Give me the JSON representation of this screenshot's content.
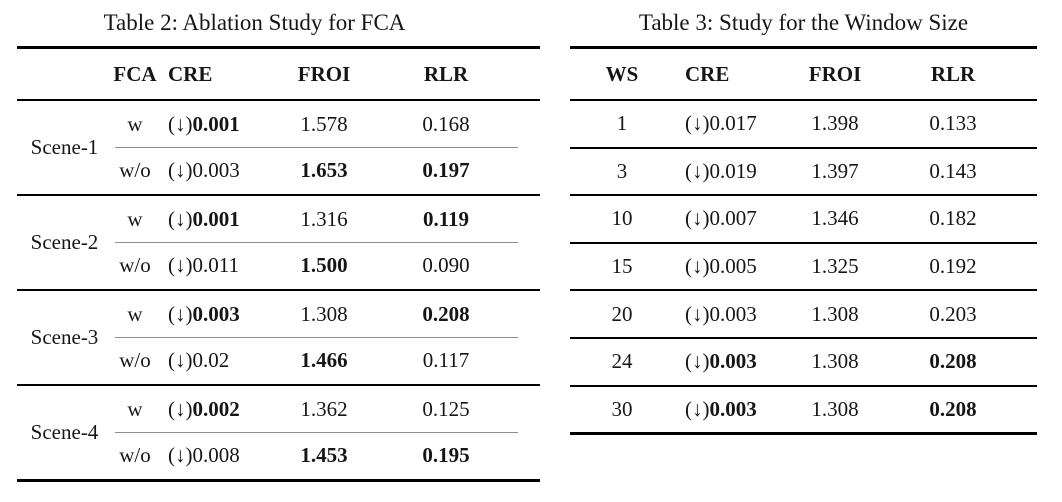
{
  "colors": {
    "background": "#ffffff",
    "text": "#161616",
    "rule": "#000000",
    "thin_divider": "#8f8f8f"
  },
  "common": {
    "cre_prefix": "(↓)"
  },
  "table2": {
    "title": "Table 2: Ablation Study for FCA",
    "columns": {
      "fca": "FCA",
      "cre": "CRE",
      "froi": "FROI",
      "rlr": "RLR"
    },
    "groups": [
      {
        "scene": "Scene-1",
        "rows": [
          {
            "fca": "w",
            "cre": "0.001",
            "cre_bold": true,
            "froi": "1.578",
            "froi_bold": false,
            "rlr": "0.168",
            "rlr_bold": false
          },
          {
            "fca": "w/o",
            "cre": "0.003",
            "cre_bold": false,
            "froi": "1.653",
            "froi_bold": true,
            "rlr": "0.197",
            "rlr_bold": true
          }
        ]
      },
      {
        "scene": "Scene-2",
        "rows": [
          {
            "fca": "w",
            "cre": "0.001",
            "cre_bold": true,
            "froi": "1.316",
            "froi_bold": false,
            "rlr": "0.119",
            "rlr_bold": true
          },
          {
            "fca": "w/o",
            "cre": "0.011",
            "cre_bold": false,
            "froi": "1.500",
            "froi_bold": true,
            "rlr": "0.090",
            "rlr_bold": false
          }
        ]
      },
      {
        "scene": "Scene-3",
        "rows": [
          {
            "fca": "w",
            "cre": "0.003",
            "cre_bold": true,
            "froi": "1.308",
            "froi_bold": false,
            "rlr": "0.208",
            "rlr_bold": true
          },
          {
            "fca": "w/o",
            "cre": "0.02",
            "cre_bold": false,
            "froi": "1.466",
            "froi_bold": true,
            "rlr": "0.117",
            "rlr_bold": false
          }
        ]
      },
      {
        "scene": "Scene-4",
        "rows": [
          {
            "fca": "w",
            "cre": "0.002",
            "cre_bold": true,
            "froi": "1.362",
            "froi_bold": false,
            "rlr": "0.125",
            "rlr_bold": false
          },
          {
            "fca": "w/o",
            "cre": "0.008",
            "cre_bold": false,
            "froi": "1.453",
            "froi_bold": true,
            "rlr": "0.195",
            "rlr_bold": true
          }
        ]
      }
    ]
  },
  "table3": {
    "title": "Table 3: Study for the Window Size",
    "columns": {
      "ws": "WS",
      "cre": "CRE",
      "froi": "FROI",
      "rlr": "RLR"
    },
    "rows": [
      {
        "ws": "1",
        "cre": "0.017",
        "cre_bold": false,
        "froi": "1.398",
        "froi_bold": false,
        "rlr": "0.133",
        "rlr_bold": false
      },
      {
        "ws": "3",
        "cre": "0.019",
        "cre_bold": false,
        "froi": "1.397",
        "froi_bold": false,
        "rlr": "0.143",
        "rlr_bold": false
      },
      {
        "ws": "10",
        "cre": "0.007",
        "cre_bold": false,
        "froi": "1.346",
        "froi_bold": false,
        "rlr": "0.182",
        "rlr_bold": false
      },
      {
        "ws": "15",
        "cre": "0.005",
        "cre_bold": false,
        "froi": "1.325",
        "froi_bold": false,
        "rlr": "0.192",
        "rlr_bold": false
      },
      {
        "ws": "20",
        "cre": "0.003",
        "cre_bold": false,
        "froi": "1.308",
        "froi_bold": false,
        "rlr": "0.203",
        "rlr_bold": false
      },
      {
        "ws": "24",
        "cre": "0.003",
        "cre_bold": true,
        "froi": "1.308",
        "froi_bold": false,
        "rlr": "0.208",
        "rlr_bold": true
      },
      {
        "ws": "30",
        "cre": "0.003",
        "cre_bold": true,
        "froi": "1.308",
        "froi_bold": false,
        "rlr": "0.208",
        "rlr_bold": true
      }
    ]
  }
}
